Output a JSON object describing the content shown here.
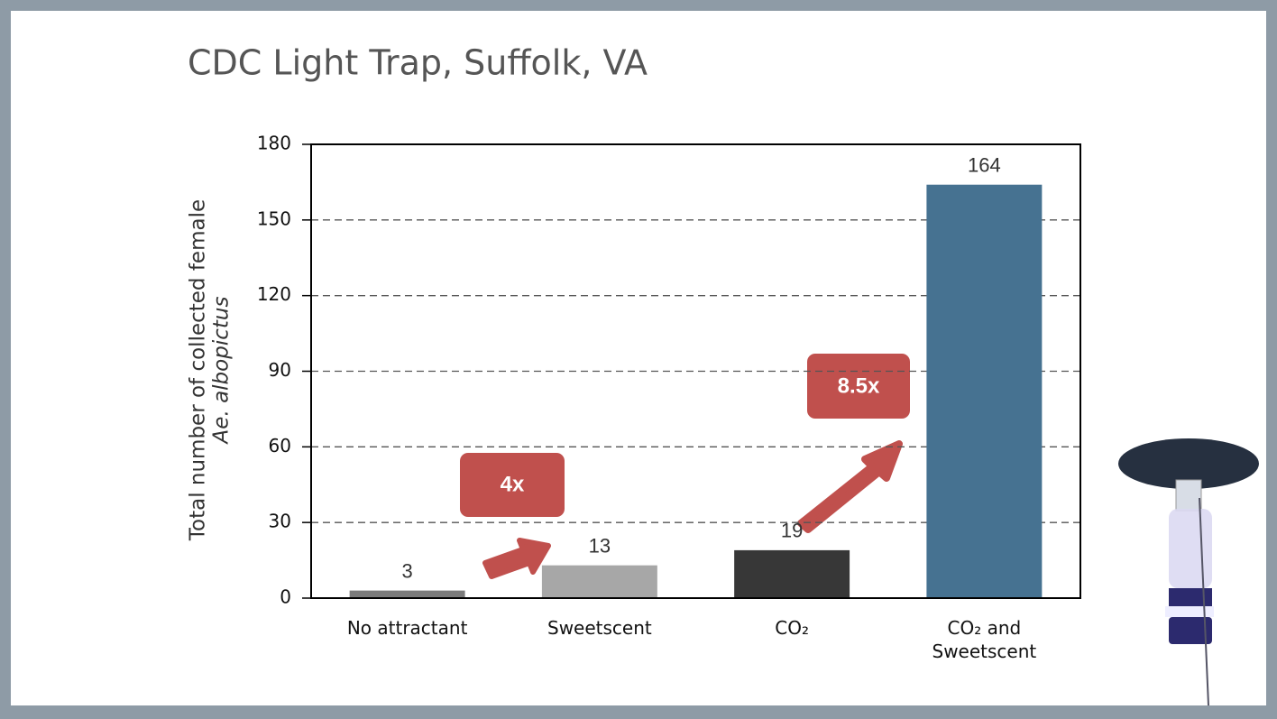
{
  "chart_data": {
    "type": "bar",
    "title": "CDC Light Trap, Suffolk, VA",
    "y_label": [
      "Total number of collected female",
      "Ae. albopictus"
    ],
    "categories": [
      "No attractant",
      "Sweetscent",
      "CO₂",
      "CO₂ and Sweetscent"
    ],
    "values": [
      3,
      13,
      19,
      164
    ],
    "colors": [
      "#7b7b7b",
      "#a7a7a7",
      "#373737",
      "#467291"
    ],
    "ylim": [
      0,
      180
    ],
    "yticks": [
      0,
      30,
      60,
      90,
      120,
      150,
      180
    ],
    "grid": true,
    "annotations": [
      "4x",
      "8.5x"
    ]
  }
}
